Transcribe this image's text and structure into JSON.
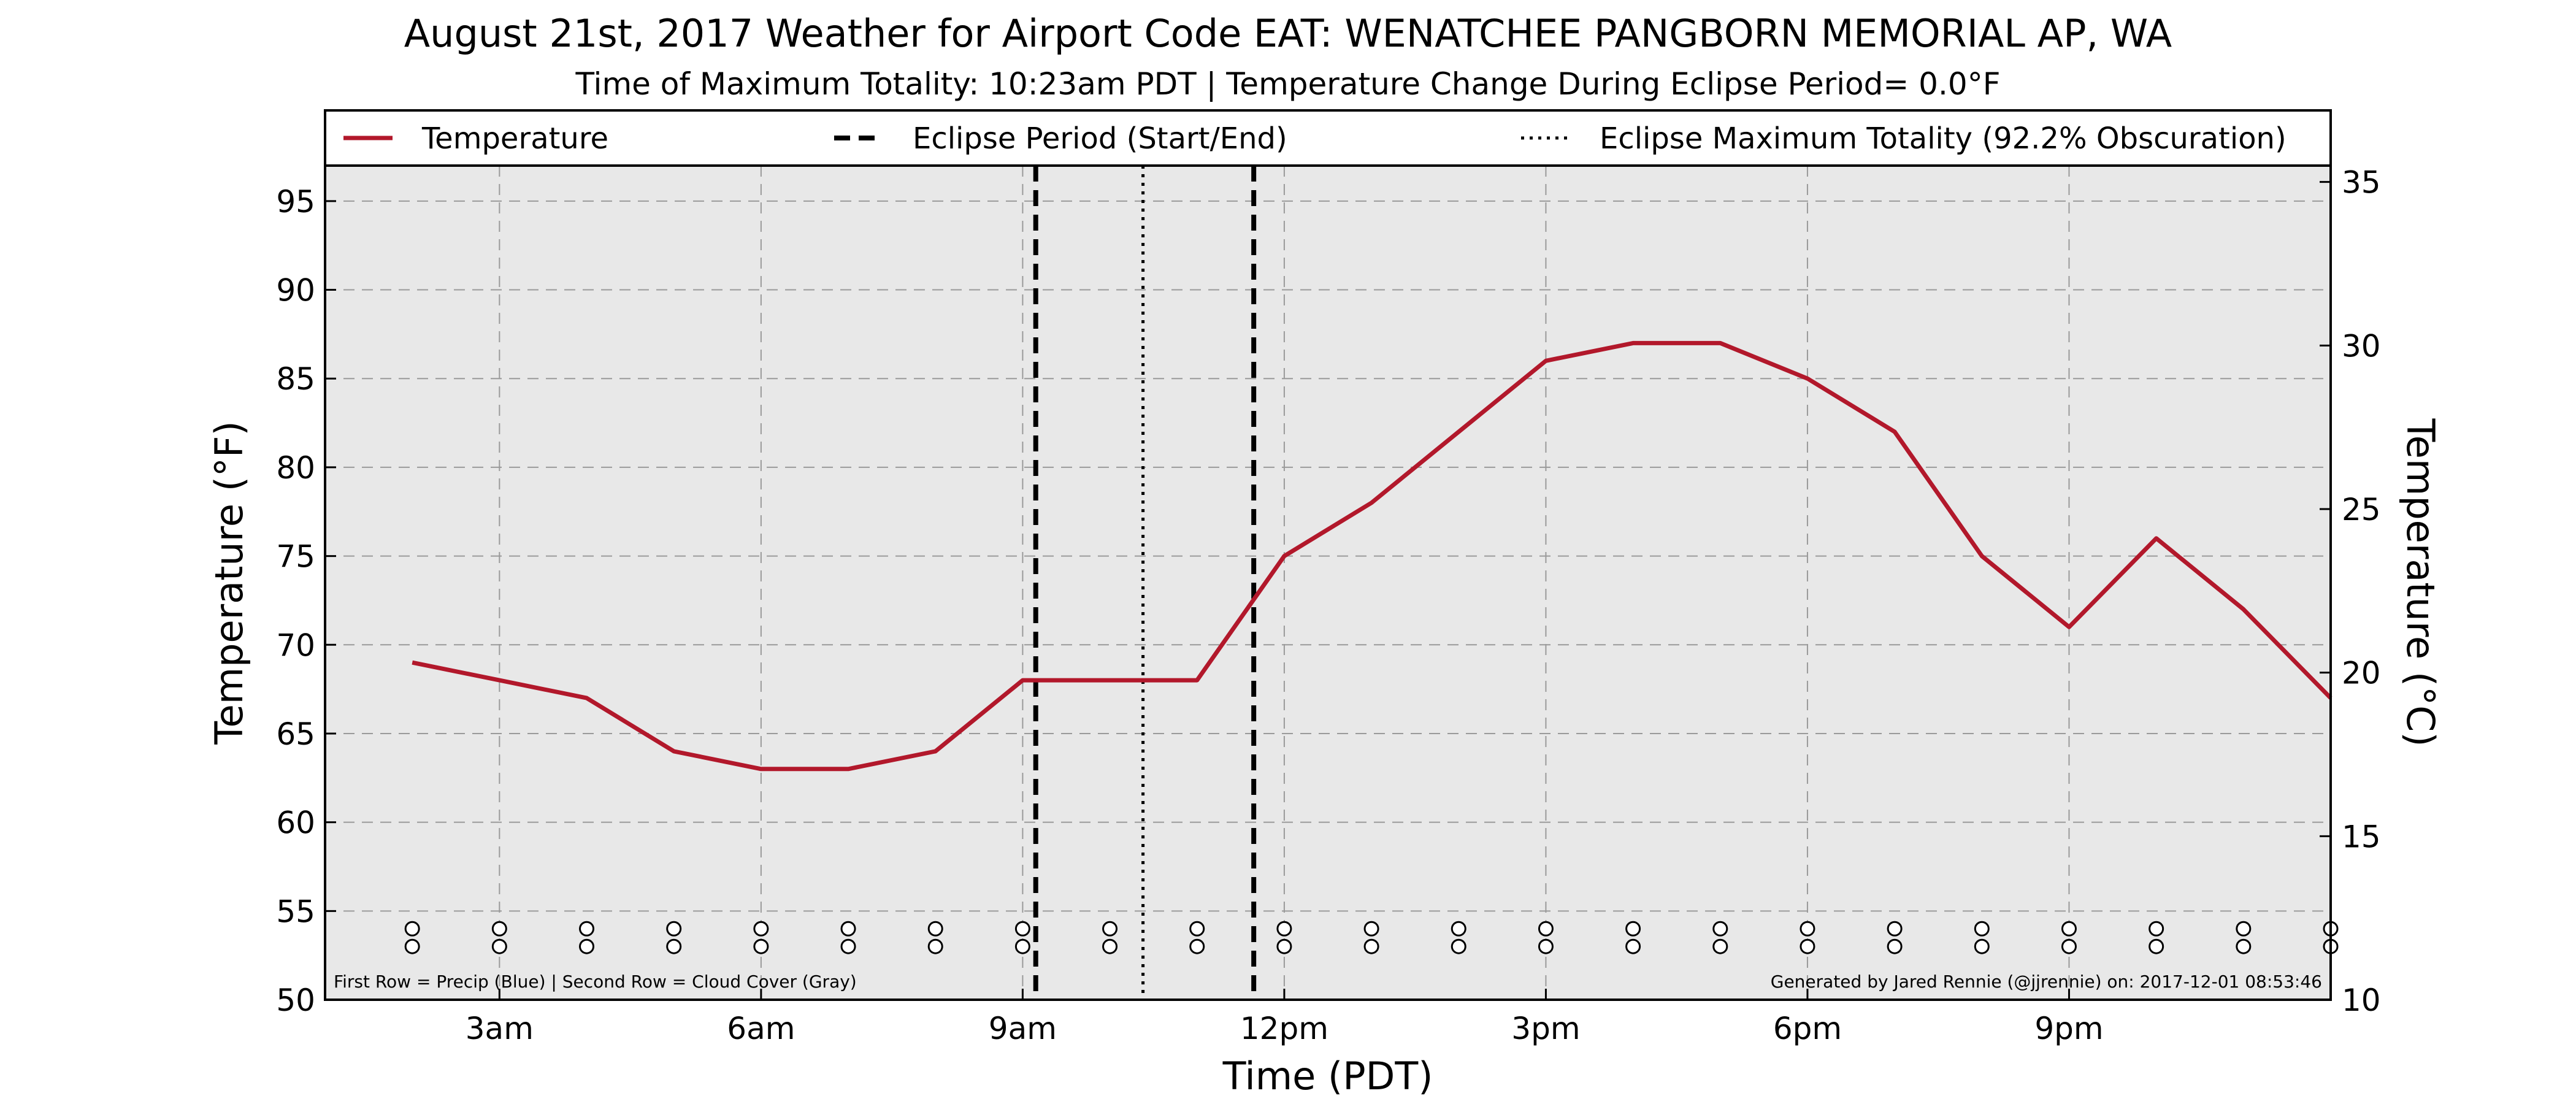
{
  "chart_data": {
    "type": "line",
    "title": "August 21st, 2017 Weather for Airport Code EAT: WENATCHEE PANGBORN MEMORIAL AP, WA",
    "subtitle": "Time of Maximum Totality: 10:23am PDT | Temperature Change During Eclipse Period= 0.0°F",
    "xlabel": "Time (PDT)",
    "ylabel": "Temperature (°F)",
    "y2label": "Temperature (°C)",
    "xlim": [
      1.0,
      24.0
    ],
    "ylim": [
      50,
      97
    ],
    "y2lim": [
      10,
      35.5
    ],
    "grid": true,
    "legend_position": "top",
    "x_ticks": [
      {
        "value": 3,
        "label": "3am"
      },
      {
        "value": 6,
        "label": "6am"
      },
      {
        "value": 9,
        "label": "9am"
      },
      {
        "value": 12,
        "label": "12pm"
      },
      {
        "value": 15,
        "label": "3pm"
      },
      {
        "value": 18,
        "label": "6pm"
      },
      {
        "value": 21,
        "label": "9pm"
      }
    ],
    "y_ticks": [
      50,
      55,
      60,
      65,
      70,
      75,
      80,
      85,
      90,
      95
    ],
    "y2_ticks": [
      10,
      15,
      20,
      25,
      30,
      35
    ],
    "legend": [
      {
        "label": "Temperature",
        "style": "solid",
        "color": "#b2182b"
      },
      {
        "label": "Eclipse Period (Start/End)",
        "style": "dashed",
        "color": "#000000"
      },
      {
        "label": "Eclipse Maximum Totality (92.2% Obscuration)",
        "style": "dotted",
        "color": "#000000"
      }
    ],
    "series": [
      {
        "name": "Temperature",
        "color": "#b2182b",
        "x": [
          2,
          3,
          4,
          5,
          6,
          7,
          8,
          9,
          10,
          11,
          12,
          13,
          14,
          15,
          16,
          17,
          18,
          19,
          20,
          21,
          22,
          23,
          24
        ],
        "values": [
          69,
          68,
          67,
          64,
          63,
          63,
          64,
          68,
          68,
          68,
          75,
          78,
          82,
          86,
          87,
          87,
          85,
          82,
          75,
          71,
          76,
          72,
          67
        ]
      }
    ],
    "eclipse_start": 9.15,
    "eclipse_end": 11.65,
    "eclipse_max": 10.38,
    "indicator_x": [
      2,
      3,
      4,
      5,
      6,
      7,
      8,
      9,
      10,
      11,
      12,
      13,
      14,
      15,
      16,
      17,
      18,
      19,
      20,
      21,
      22,
      23,
      24
    ],
    "indicator_rows": [
      {
        "name": "Precip",
        "color": "Blue",
        "value_y": 54
      },
      {
        "name": "Cloud Cover",
        "color": "Gray",
        "value_y": 53
      }
    ],
    "footnote_left": "First Row = Precip (Blue) | Second Row = Cloud Cover (Gray)",
    "footnote_right": "Generated by Jared Rennie (@jjrennie) on: 2017-12-01 08:53:46",
    "plot_background": "#e8e8e8"
  }
}
